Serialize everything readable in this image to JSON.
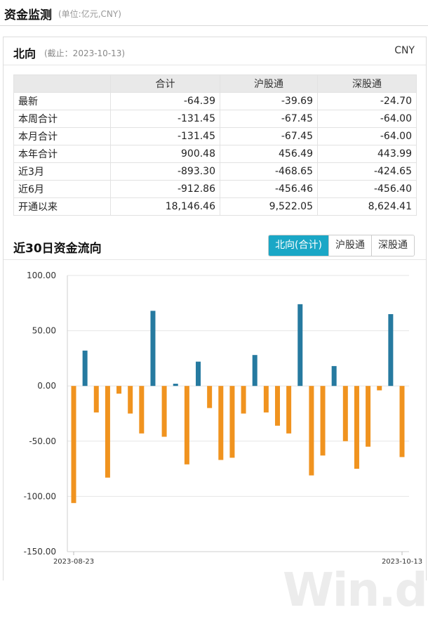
{
  "page": {
    "title": "资金监测",
    "subtitle": "(单位:亿元,CNY)"
  },
  "north": {
    "title": "北向",
    "as_of": "(截止：2023-10-13)",
    "currency": "CNY"
  },
  "table": {
    "headers": [
      "",
      "合计",
      "沪股通",
      "深股通"
    ],
    "rows": [
      {
        "label": "最新",
        "total": "-64.39",
        "sh": "-39.69",
        "sz": "-24.70"
      },
      {
        "label": "本周合计",
        "total": "-131.45",
        "sh": "-67.45",
        "sz": "-64.00"
      },
      {
        "label": "本月合计",
        "total": "-131.45",
        "sh": "-67.45",
        "sz": "-64.00"
      },
      {
        "label": "本年合计",
        "total": "900.48",
        "sh": "456.49",
        "sz": "443.99"
      },
      {
        "label": "近3月",
        "total": "-893.30",
        "sh": "-468.65",
        "sz": "-424.65"
      },
      {
        "label": "近6月",
        "total": "-912.86",
        "sh": "-456.46",
        "sz": "-456.40"
      },
      {
        "label": "开通以来",
        "total": "18,146.46",
        "sh": "9,522.05",
        "sz": "8,624.41"
      }
    ]
  },
  "chart_section": {
    "title": "近30日资金流向",
    "tabs": [
      {
        "label": "北向(合计)",
        "active": true
      },
      {
        "label": "沪股通",
        "active": false
      },
      {
        "label": "深股通",
        "active": false
      }
    ]
  },
  "watermark": "Win.d",
  "colors": {
    "positive": "#267aa0",
    "negative": "#f0931f",
    "accent": "#1aa7c6"
  },
  "chart_data": {
    "type": "bar",
    "x_start_label": "2023-08-23",
    "x_end_label": "2023-10-13",
    "values": [
      -106,
      32,
      -24,
      -83,
      -7,
      -25,
      -43,
      68,
      -46,
      2,
      -71,
      22,
      -20,
      -67,
      -65,
      -25,
      28,
      -24,
      -36,
      -43,
      74,
      -81,
      -63,
      18,
      -50,
      -75,
      -55,
      -4,
      65,
      -64.39
    ],
    "ylim": [
      -150,
      100
    ],
    "yticks": [
      "100.00",
      "50.00",
      "0.00",
      "-50.00",
      "-100.00",
      "-150.00"
    ],
    "ytick_values": [
      100,
      50,
      0,
      -50,
      -100,
      -150
    ],
    "grid": true
  }
}
